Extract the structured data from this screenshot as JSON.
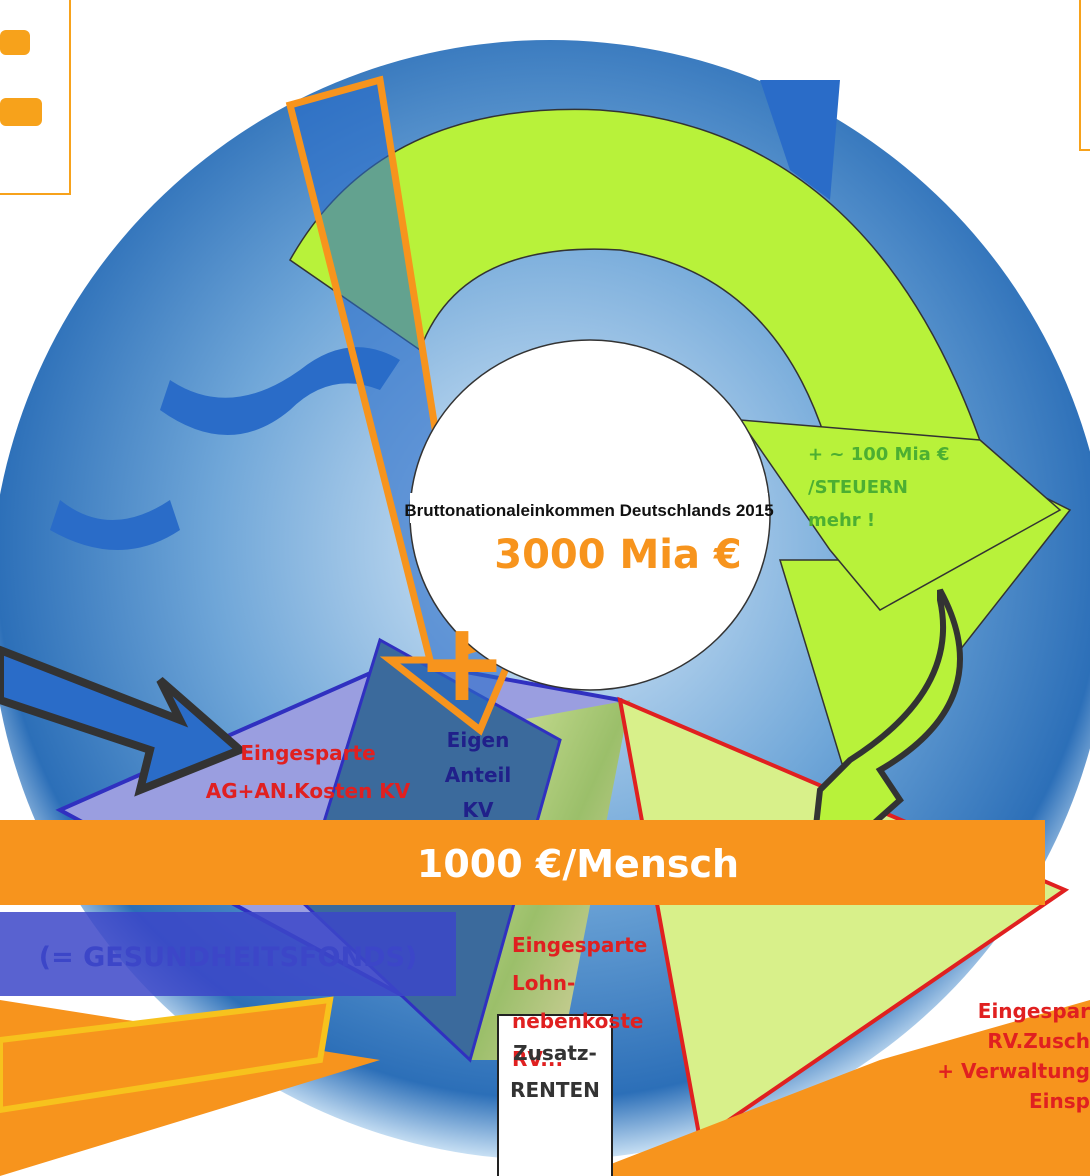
{
  "center": {
    "title": "Bruttonationaleinkommen Deutschlands 2015",
    "amount": "3000 Mia €"
  },
  "tax_note": [
    "+ ~ 100 Mia €",
    "/STEUERN",
    "mehr !"
  ],
  "plus_sign": "+",
  "banner": "1000 €/Mensch",
  "fund_label": "(= GESUNDHEITSFONDS)",
  "segments": [
    {
      "lines": [
        "Eingesparte",
        "AG+AN.Kosten   KV"
      ]
    },
    {
      "lines": [
        "Eigen",
        "Anteil",
        "KV"
      ]
    },
    {
      "lines": [
        "Eingesparte",
        "Lohn-",
        "nebenkoste",
        "RV..."
      ]
    },
    {
      "lines": [
        "Eingespar",
        "RV.Zusch",
        "+ Verwaltung",
        "Einsp"
      ]
    }
  ],
  "box_label": [
    "Zusatz-",
    "RENTEN"
  ]
}
